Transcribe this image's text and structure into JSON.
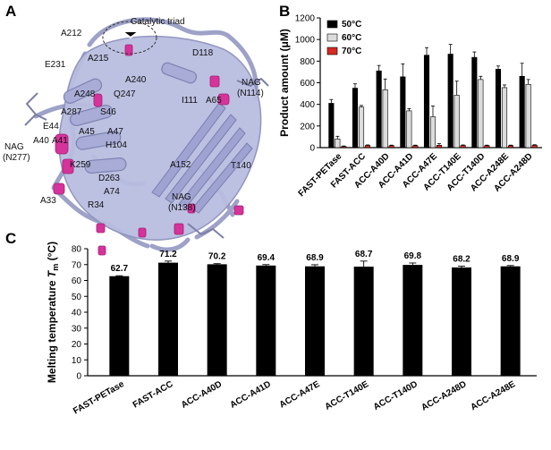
{
  "panels": {
    "a_letter": "A",
    "b_letter": "B",
    "c_letter": "C"
  },
  "structure_labels": {
    "catalytic_triad": "Catalytic triad",
    "residues": [
      "A212",
      "A215",
      "E231",
      "D118",
      "A240",
      "A248",
      "Q247",
      "NAG",
      "(N114)",
      "I111",
      "A65",
      "A287",
      "S46",
      "E44",
      "NAG",
      "(N277)",
      "A40",
      "A41",
      "A45",
      "A47",
      "H104",
      "K259",
      "D263",
      "A152",
      "T140",
      "A33",
      "A74",
      "R34",
      "NAG",
      "(N138)"
    ]
  },
  "chart_data": [
    {
      "type": "bar",
      "panel": "B",
      "categories": [
        "FAST-PETase",
        "FAST-ACC",
        "ACC-A40D",
        "ACC-A41D",
        "ACC-A47E",
        "ACC-T140E",
        "ACC-T140D",
        "ACC-A248E",
        "ACC-A248D"
      ],
      "series": [
        {
          "name": "50°C",
          "color": "#000000",
          "values": [
            410,
            550,
            710,
            655,
            855,
            865,
            835,
            725,
            660
          ],
          "errors": [
            35,
            40,
            50,
            120,
            70,
            90,
            50,
            30,
            120
          ]
        },
        {
          "name": "60°C",
          "color": "#dcdcdc",
          "values": [
            80,
            375,
            535,
            340,
            285,
            485,
            630,
            555,
            585
          ],
          "errors": [
            25,
            15,
            100,
            20,
            100,
            130,
            30,
            25,
            45
          ]
        },
        {
          "name": "70°C",
          "color": "#d62a22",
          "values": [
            10,
            20,
            18,
            18,
            22,
            20,
            18,
            18,
            22
          ],
          "errors": [
            5,
            5,
            5,
            5,
            15,
            5,
            5,
            5,
            5
          ]
        }
      ],
      "ylabel": "Product amount (μM)",
      "ylim": [
        0,
        1200
      ],
      "yticks": [
        0,
        200,
        400,
        600,
        800,
        1000,
        1200
      ],
      "ytick_labels": [
        "0",
        "200",
        "400",
        "600",
        "800",
        "1000",
        "1200"
      ],
      "legend_position": "top-left"
    },
    {
      "type": "bar",
      "panel": "C",
      "categories": [
        "FAST-PETase",
        "FAST-ACC",
        "ACC-A40D",
        "ACC-A41D",
        "ACC-A47E",
        "ACC-T140E",
        "ACC-T140D",
        "ACC-A248D",
        "ACC-A248E"
      ],
      "values": [
        62.7,
        71.2,
        70.2,
        69.4,
        68.9,
        68.7,
        69.8,
        68.2,
        68.9
      ],
      "value_labels": [
        "62.7",
        "71.2",
        "70.2",
        "69.4",
        "68.9",
        "68.7",
        "69.8",
        "68.2",
        "68.9"
      ],
      "errors": [
        0.3,
        1.0,
        0.4,
        0.6,
        1.0,
        3.5,
        1.2,
        0.8,
        0.5
      ],
      "color": "#000000",
      "ylabel_main": "Melting temperature ",
      "ylabel_symbol": "T",
      "ylabel_sub": "m",
      "ylabel_unit": " (°C)",
      "ylim": [
        0,
        80
      ],
      "yticks": [
        0,
        10,
        20,
        30,
        40,
        50,
        60,
        70,
        80
      ],
      "ytick_labels": [
        "0",
        "10",
        "20",
        "30",
        "40",
        "50",
        "60",
        "70",
        "80"
      ]
    }
  ]
}
